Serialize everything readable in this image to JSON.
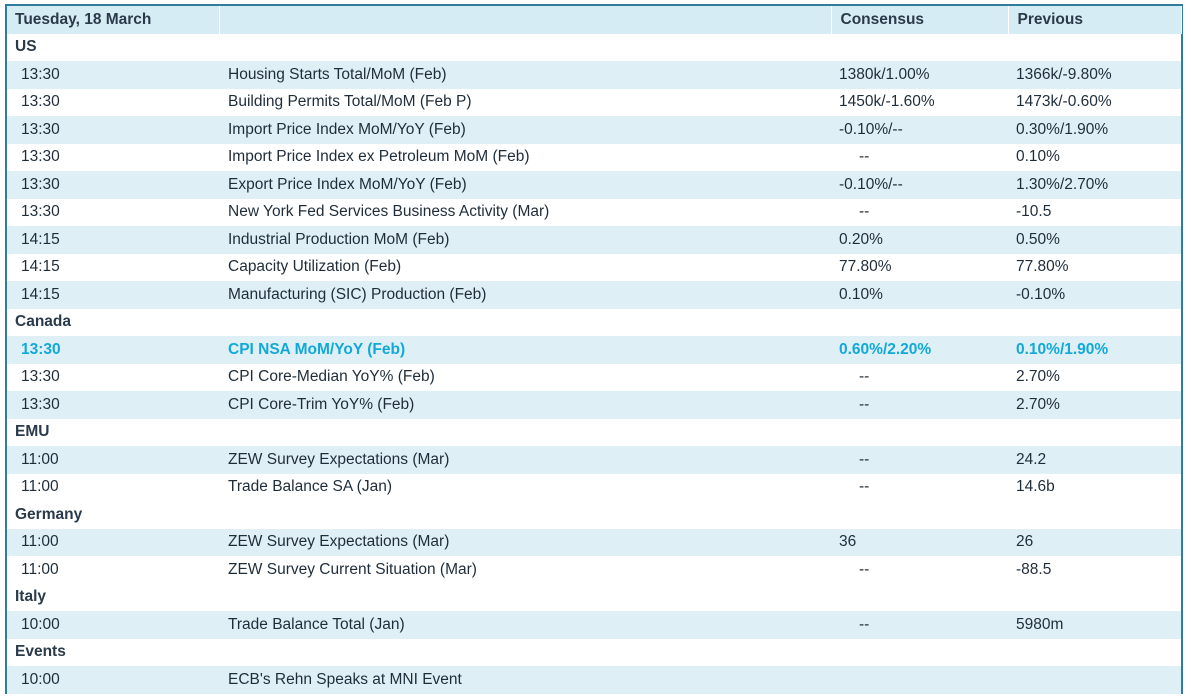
{
  "header": {
    "date": "Tuesday, 18 March",
    "event_col": "",
    "consensus_label": "Consensus",
    "previous_label": "Previous"
  },
  "colors": {
    "border": "#2f7d9c",
    "shade": "#dfeff6",
    "highlight": "#12a9d8"
  },
  "sections": [
    {
      "region": "US",
      "rows": [
        {
          "time": "13:30",
          "event": "Housing Starts Total/MoM (Feb)",
          "consensus": "1380k/1.00%",
          "previous": "1366k/-9.80%"
        },
        {
          "time": "13:30",
          "event": "Building Permits Total/MoM (Feb P)",
          "consensus": "1450k/-1.60%",
          "previous": "1473k/-0.60%"
        },
        {
          "time": "13:30",
          "event": "Import Price Index MoM/YoY (Feb)",
          "consensus": "-0.10%/--",
          "previous": "0.30%/1.90%"
        },
        {
          "time": "13:30",
          "event": "Import Price Index ex Petroleum MoM (Feb)",
          "consensus": "--",
          "previous": "0.10%"
        },
        {
          "time": "13:30",
          "event": "Export Price Index MoM/YoY (Feb)",
          "consensus": "-0.10%/--",
          "previous": "1.30%/2.70%"
        },
        {
          "time": "13:30",
          "event": "New York Fed Services Business Activity (Mar)",
          "consensus": "--",
          "previous": "-10.5"
        },
        {
          "time": "14:15",
          "event": "Industrial Production MoM (Feb)",
          "consensus": "0.20%",
          "previous": "0.50%"
        },
        {
          "time": "14:15",
          "event": "Capacity Utilization (Feb)",
          "consensus": "77.80%",
          "previous": "77.80%"
        },
        {
          "time": "14:15",
          "event": "Manufacturing (SIC) Production (Feb)",
          "consensus": "0.10%",
          "previous": "-0.10%"
        }
      ]
    },
    {
      "region": "Canada",
      "rows": [
        {
          "time": "13:30",
          "event": "CPI NSA MoM/YoY (Feb)",
          "consensus": "0.60%/2.20%",
          "previous": "0.10%/1.90%",
          "highlight": true
        },
        {
          "time": "13:30",
          "event": "CPI Core-Median YoY% (Feb)",
          "consensus": "--",
          "previous": "2.70%"
        },
        {
          "time": "13:30",
          "event": "CPI Core-Trim YoY% (Feb)",
          "consensus": "--",
          "previous": "2.70%"
        }
      ]
    },
    {
      "region": "EMU",
      "rows": [
        {
          "time": "11:00",
          "event": "ZEW Survey Expectations (Mar)",
          "consensus": "--",
          "previous": "24.2"
        },
        {
          "time": "11:00",
          "event": "Trade Balance SA (Jan)",
          "consensus": "--",
          "previous": "14.6b"
        }
      ]
    },
    {
      "region": "Germany",
      "rows": [
        {
          "time": "11:00",
          "event": "ZEW Survey Expectations (Mar)",
          "consensus": "36",
          "previous": "26"
        },
        {
          "time": "11:00",
          "event": "ZEW Survey Current Situation (Mar)",
          "consensus": "--",
          "previous": "-88.5"
        }
      ]
    },
    {
      "region": "Italy",
      "rows": [
        {
          "time": "10:00",
          "event": "Trade Balance Total (Jan)",
          "consensus": "--",
          "previous": "5980m"
        }
      ]
    },
    {
      "region": "Events",
      "rows": [
        {
          "time": "10:00",
          "event": "ECB's Rehn Speaks at MNI Event",
          "consensus": "",
          "previous": ""
        }
      ]
    }
  ]
}
